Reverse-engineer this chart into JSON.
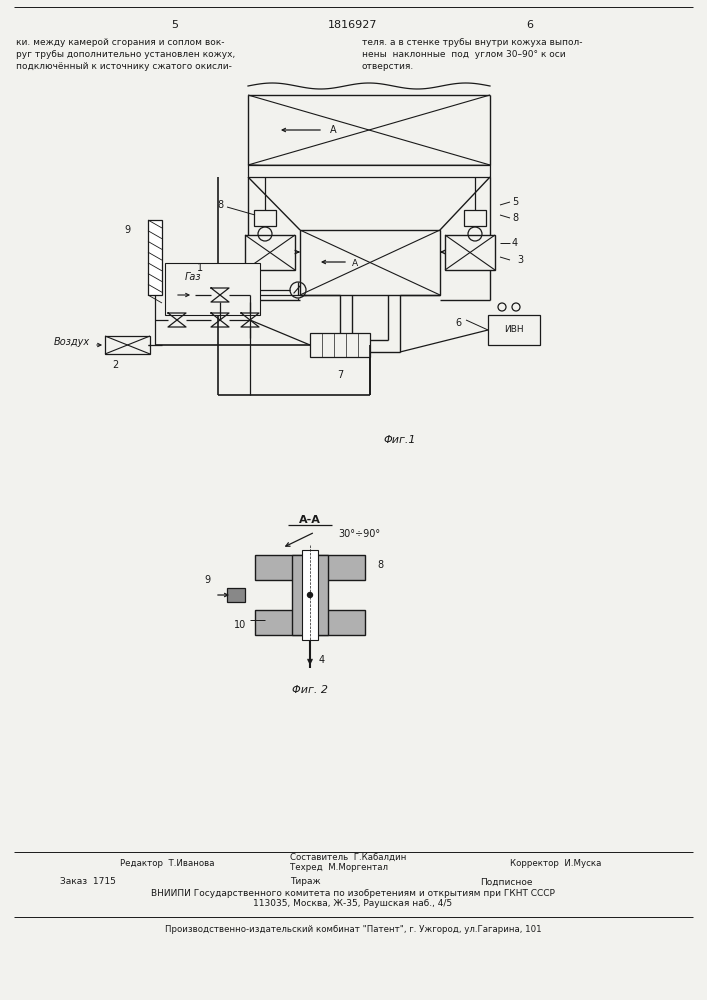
{
  "page_num_left": "5",
  "page_num_center": "1816927",
  "page_num_right": "6",
  "top_text_left": "ки. между камерой сгорания и соплом вок-\nруг трубы дополнительно установлен кожух,\nподключённый к источнику сжатого окисли-",
  "top_text_right": "теля. а в стенке трубы внутри кожуха выпол-\nнены  наклонные  под  углом 30–90° к оси\nотверстия.",
  "fig1_caption": "Φиг.1",
  "fig2_caption": "Φиг. 2",
  "fig2_label": "А-А",
  "fig2_angle": "30°÷90°",
  "label_gaz": "Газ",
  "label_vozduh": "Воздух",
  "label_ivn": "ИВН",
  "bottom_editor": "Редактор  Т.Иванова",
  "bottom_author": "Составитель  Г.Кабалдин",
  "bottom_tech": "Техред  М.Моргентал",
  "bottom_corrector": "Корректор  И.Муска",
  "bottom_order": "Заказ  1715",
  "bottom_tirazh": "Тираж",
  "bottom_podpisnoe": "Подписное",
  "bottom_vniip": "ВНИИПИ Государственного комитета по изобретениям и открытиям при ГКНТ СССР",
  "bottom_addr": "113035, Москва, Ж-35, Раушская наб., 4/5",
  "bottom_patent": "Производственно-издательский комбинат \"Патент\", г. Ужгород, ул.Гагарина, 101",
  "bg_color": "#f2f2ee",
  "line_color": "#1a1a1a"
}
